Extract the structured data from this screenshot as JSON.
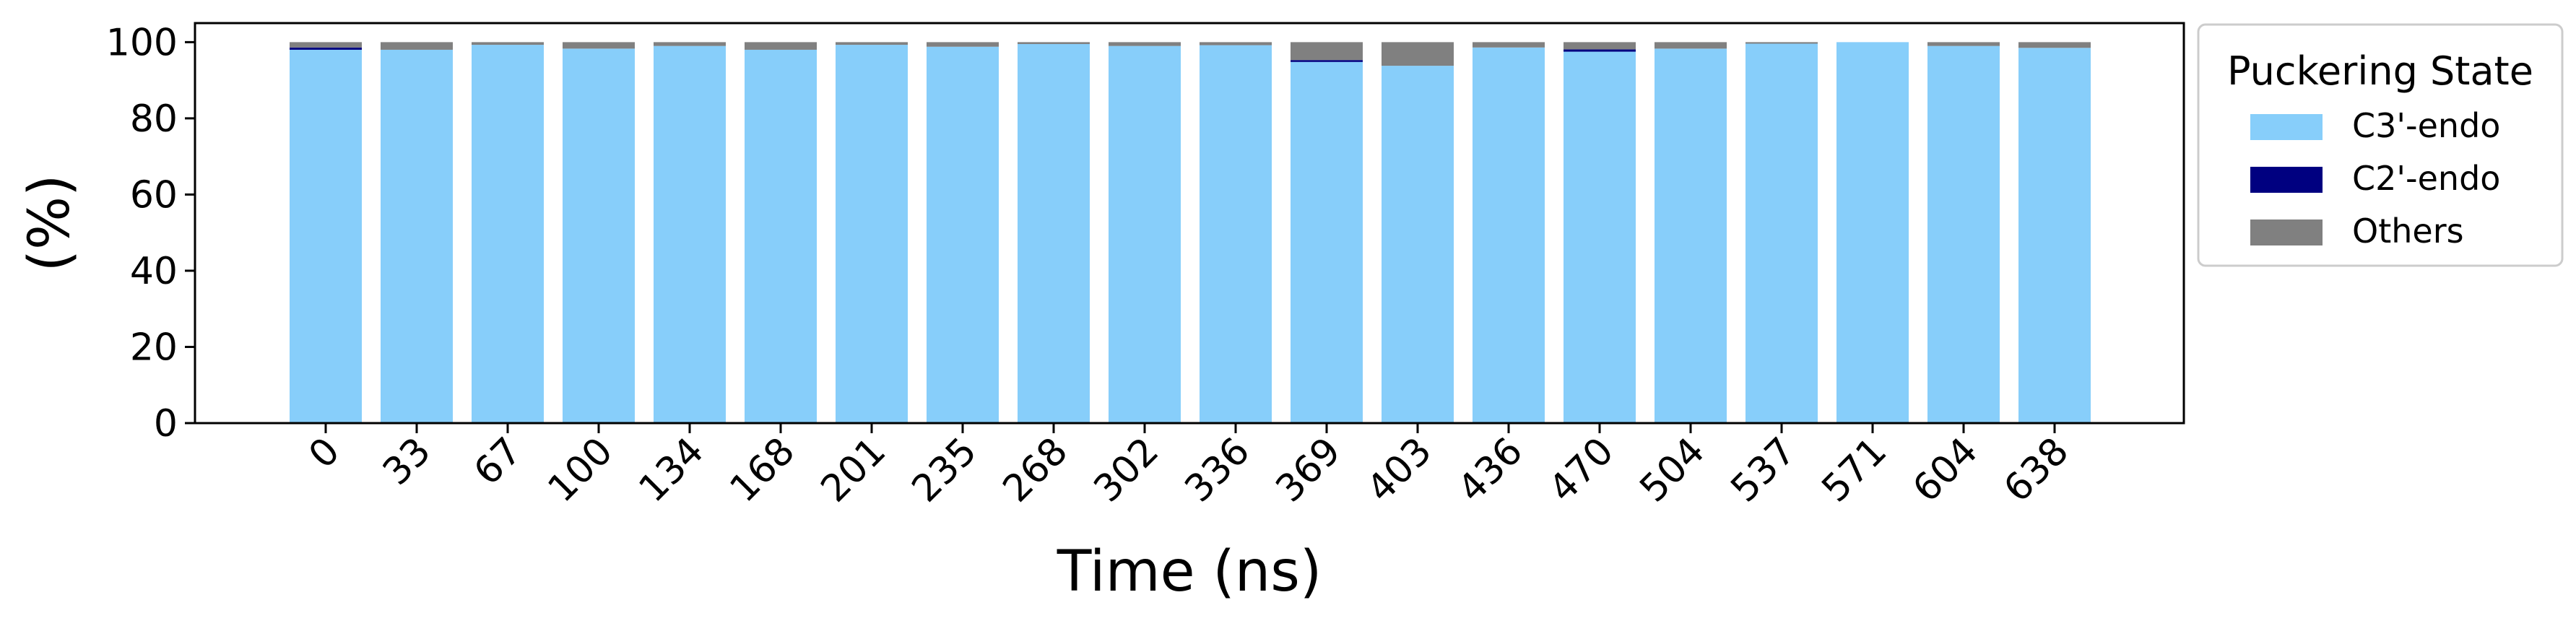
{
  "chart_data": {
    "type": "bar",
    "stacked": true,
    "xlabel": "Time (ns)",
    "ylabel": "(%)",
    "ylim": [
      0,
      105
    ],
    "yticks": [
      0,
      20,
      40,
      60,
      80,
      100
    ],
    "grid": false,
    "legend": {
      "title": "Puckering State",
      "placement": "outside-right-top"
    },
    "categories": [
      "0",
      "33",
      "67",
      "100",
      "134",
      "168",
      "201",
      "235",
      "268",
      "302",
      "336",
      "369",
      "403",
      "436",
      "470",
      "504",
      "537",
      "571",
      "604",
      "638"
    ],
    "series": [
      {
        "name": "C3'-endo",
        "color": "#87CEFA",
        "values": [
          98.0,
          98.0,
          99.3,
          98.3,
          99.0,
          98.0,
          99.3,
          98.8,
          99.5,
          99.0,
          99.2,
          94.8,
          93.8,
          98.6,
          97.5,
          98.3,
          99.6,
          100.0,
          99.0,
          98.5
        ]
      },
      {
        "name": "C2'-endo",
        "color": "#000080",
        "values": [
          0.6,
          0.0,
          0.0,
          0.0,
          0.0,
          0.0,
          0.0,
          0.0,
          0.0,
          0.0,
          0.0,
          0.5,
          0.0,
          0.0,
          0.6,
          0.0,
          0.0,
          0.0,
          0.0,
          0.0
        ]
      },
      {
        "name": "Others",
        "color": "#808080",
        "values": [
          1.4,
          2.0,
          0.7,
          1.7,
          1.0,
          2.0,
          0.7,
          1.2,
          0.5,
          1.0,
          0.8,
          4.7,
          6.2,
          1.4,
          1.9,
          1.7,
          0.4,
          0.0,
          1.0,
          1.5
        ]
      }
    ]
  }
}
